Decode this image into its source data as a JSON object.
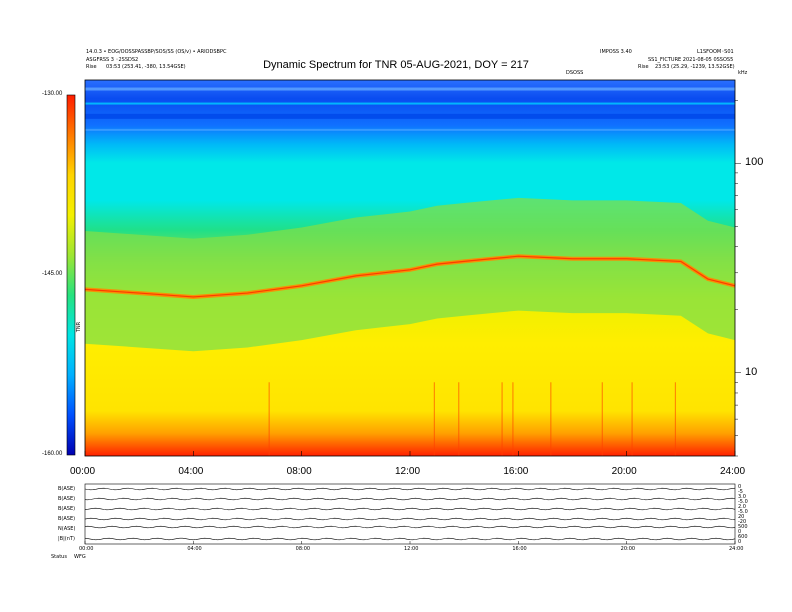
{
  "header": {
    "left_line1": "14.0.3 • EOG/OOSSPASSBP/SOS/SS (OS/v) • ARIODSBPC",
    "left_line2": "ASGFRSS 3 ◦2SSDS2",
    "left_rise_label": "Rise",
    "left_rise_value": "03:53 (253.41, -380, 13.54GSE)",
    "right_top1": "IMPOSS 3.40",
    "right_top2": "L1SFOOM◦S01",
    "right_line2": "SS1_FICTURE 2021-08-05 0SSOS5",
    "right_rise_label": "Rise",
    "right_rise_value": "23:53 (25.29, -1239, 13.52GSE)",
    "above_plot_small": "DSOSS",
    "top_right_tiny": "kHz"
  },
  "chart_data": {
    "type": "heatmap",
    "title": "Dynamic Spectrum for TNR 05-AUG-2021, DOY = 217",
    "x_tick_labels": [
      "00:00",
      "04:00",
      "08:00",
      "12:00",
      "16:00",
      "20:00",
      "24:00"
    ],
    "x_range_hours": [
      0,
      24
    ],
    "y_axis": "log",
    "y_range_khz": [
      4,
      250
    ],
    "y_tick_labels": [
      "100",
      "10"
    ],
    "y_tick_values": [
      100,
      10
    ],
    "colorbar_labels": [
      "-130.00",
      "-145.00",
      "-160.00"
    ],
    "colorbar_values": [
      -130,
      -145,
      -160
    ],
    "colorbar_unit": "TNR",
    "colorbar_colors": [
      "#ff1d00",
      "#ff7a00",
      "#ffd400",
      "#f4f000",
      "#9ee632",
      "#26e27e",
      "#00e4e4",
      "#00b0ff",
      "#0050ff",
      "#0000b0"
    ],
    "emission_band_khz": [
      [
        0,
        25
      ],
      [
        2,
        24
      ],
      [
        4,
        23
      ],
      [
        6,
        24
      ],
      [
        8,
        26
      ],
      [
        10,
        29
      ],
      [
        12,
        31
      ],
      [
        13,
        33
      ],
      [
        14,
        34
      ],
      [
        15,
        35
      ],
      [
        16,
        36
      ],
      [
        18,
        35
      ],
      [
        20,
        35
      ],
      [
        22,
        34
      ],
      [
        23,
        28
      ],
      [
        24,
        26
      ]
    ],
    "noise_colors": {
      "background": "#00e8e8",
      "upper_blue": "#1060ff",
      "lower_band": "#ffee00",
      "base": "#ff3000"
    }
  },
  "strips": {
    "rows": [
      {
        "label": "B(ASE)",
        "right_top": "0",
        "right_bot": "-5"
      },
      {
        "label": "B(ASE)",
        "right_top": "3.0",
        "right_bot": "-5.0"
      },
      {
        "label": "B(ASE)",
        "right_top": "2.0",
        "right_bot": "-5.0"
      },
      {
        "label": "B(ASE)",
        "right_top": "20",
        "right_bot": "-20"
      },
      {
        "label": "N(ASE)",
        "right_top": "500",
        "right_bot": "0"
      },
      {
        "label": "|B|(nT)",
        "right_top": "600",
        "right_bot": "0"
      }
    ],
    "x_tick_labels": [
      "00:00",
      "04:00",
      "08:00",
      "12:00",
      "16:00",
      "20:00",
      "24:00"
    ],
    "footer_left": "Status",
    "footer_small": "WFG"
  }
}
